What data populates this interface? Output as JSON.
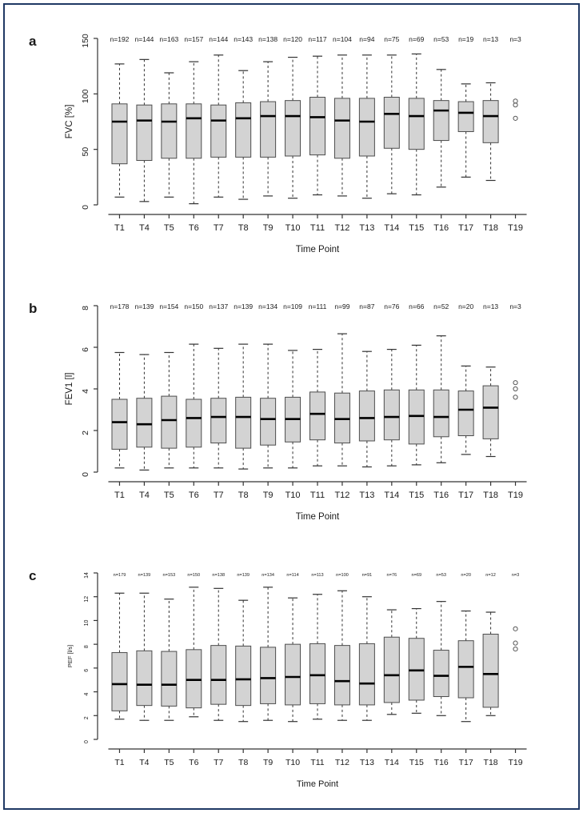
{
  "page": {
    "frame_border_color": "#1f3864",
    "background_color": "#ffffff"
  },
  "panels": [
    {
      "letter": "a"
    },
    {
      "letter": "b"
    },
    {
      "letter": "c"
    }
  ],
  "chart_data": [
    {
      "type": "boxplot",
      "panel": "a",
      "ylabel": "FVC [%]",
      "xlabel": "Time Point",
      "ylim": [
        0,
        150
      ],
      "yticks": [
        0,
        50,
        100,
        150
      ],
      "grid": false,
      "box_fill": "#d3d3d3",
      "box_stroke": "#4d4d4d",
      "median_color": "#000000",
      "whisker_color": "#333333",
      "categories": [
        "T1",
        "T4",
        "T5",
        "T6",
        "T7",
        "T8",
        "T9",
        "T10",
        "T11",
        "T12",
        "T13",
        "T14",
        "T15",
        "T16",
        "T17",
        "T18",
        "T19"
      ],
      "n_labels": [
        "n=192",
        "n=144",
        "n=163",
        "n=157",
        "n=144",
        "n=143",
        "n=138",
        "n=120",
        "n=117",
        "n=104",
        "n=94",
        "n=75",
        "n=69",
        "n=53",
        "n=19",
        "n=13",
        "n=3"
      ],
      "boxes": [
        {
          "low": 7,
          "q1": 37,
          "med": 75,
          "q3": 91,
          "high": 127
        },
        {
          "low": 3,
          "q1": 40,
          "med": 76,
          "q3": 90,
          "high": 131
        },
        {
          "low": 7,
          "q1": 42,
          "med": 75,
          "q3": 91,
          "high": 119
        },
        {
          "low": 1,
          "q1": 42,
          "med": 78,
          "q3": 91,
          "high": 129
        },
        {
          "low": 7,
          "q1": 43,
          "med": 76,
          "q3": 90,
          "high": 135
        },
        {
          "low": 5,
          "q1": 43,
          "med": 78,
          "q3": 92,
          "high": 121
        },
        {
          "low": 8,
          "q1": 43,
          "med": 80,
          "q3": 93,
          "high": 129
        },
        {
          "low": 6,
          "q1": 44,
          "med": 80,
          "q3": 94,
          "high": 133
        },
        {
          "low": 9,
          "q1": 45,
          "med": 79,
          "q3": 97,
          "high": 134
        },
        {
          "low": 8,
          "q1": 42,
          "med": 76,
          "q3": 96,
          "high": 135
        },
        {
          "low": 6,
          "q1": 44,
          "med": 75,
          "q3": 96,
          "high": 135
        },
        {
          "low": 10,
          "q1": 51,
          "med": 82,
          "q3": 97,
          "high": 135
        },
        {
          "low": 9,
          "q1": 50,
          "med": 80,
          "q3": 96,
          "high": 136
        },
        {
          "low": 16,
          "q1": 58,
          "med": 85,
          "q3": 94,
          "high": 122
        },
        {
          "low": 25,
          "q1": 66,
          "med": 83,
          "q3": 93,
          "high": 109
        },
        {
          "low": 22,
          "q1": 56,
          "med": 80,
          "q3": 94,
          "high": 110
        },
        null
      ],
      "outliers": {
        "category": "T19",
        "values": [
          93.5,
          90,
          78
        ]
      }
    },
    {
      "type": "boxplot",
      "panel": "b",
      "ylabel": "FEV1 [l]",
      "xlabel": "Time Point",
      "ylim": [
        0,
        8
      ],
      "yticks": [
        0,
        2,
        4,
        6,
        8
      ],
      "grid": false,
      "box_fill": "#d3d3d3",
      "box_stroke": "#4d4d4d",
      "median_color": "#000000",
      "whisker_color": "#333333",
      "categories": [
        "T1",
        "T4",
        "T5",
        "T6",
        "T7",
        "T8",
        "T9",
        "T10",
        "T11",
        "T12",
        "T13",
        "T14",
        "T15",
        "T16",
        "T17",
        "T18",
        "T19"
      ],
      "n_labels": [
        "n=178",
        "n=139",
        "n=154",
        "n=150",
        "n=137",
        "n=139",
        "n=134",
        "n=109",
        "n=111",
        "n=99",
        "n=87",
        "n=76",
        "n=66",
        "n=52",
        "n=20",
        "n=13",
        "n=3"
      ],
      "boxes": [
        {
          "low": 0.2,
          "q1": 1.1,
          "med": 2.4,
          "q3": 3.5,
          "high": 5.75
        },
        {
          "low": 0.1,
          "q1": 1.2,
          "med": 2.3,
          "q3": 3.55,
          "high": 5.65
        },
        {
          "low": 0.2,
          "q1": 1.15,
          "med": 2.5,
          "q3": 3.65,
          "high": 5.75
        },
        {
          "low": 0.2,
          "q1": 1.2,
          "med": 2.6,
          "q3": 3.5,
          "high": 6.15
        },
        {
          "low": 0.2,
          "q1": 1.4,
          "med": 2.65,
          "q3": 3.55,
          "high": 5.95
        },
        {
          "low": 0.15,
          "q1": 1.15,
          "med": 2.65,
          "q3": 3.6,
          "high": 6.15
        },
        {
          "low": 0.2,
          "q1": 1.3,
          "med": 2.55,
          "q3": 3.55,
          "high": 6.15
        },
        {
          "low": 0.2,
          "q1": 1.45,
          "med": 2.55,
          "q3": 3.6,
          "high": 5.85
        },
        {
          "low": 0.3,
          "q1": 1.55,
          "med": 2.8,
          "q3": 3.85,
          "high": 5.9
        },
        {
          "low": 0.3,
          "q1": 1.4,
          "med": 2.55,
          "q3": 3.8,
          "high": 6.65
        },
        {
          "low": 0.25,
          "q1": 1.5,
          "med": 2.6,
          "q3": 3.9,
          "high": 5.8
        },
        {
          "low": 0.3,
          "q1": 1.55,
          "med": 2.65,
          "q3": 3.95,
          "high": 5.9
        },
        {
          "low": 0.35,
          "q1": 1.35,
          "med": 2.7,
          "q3": 3.95,
          "high": 6.1
        },
        {
          "low": 0.45,
          "q1": 1.7,
          "med": 2.65,
          "q3": 3.95,
          "high": 6.55
        },
        {
          "low": 0.85,
          "q1": 1.75,
          "med": 3.0,
          "q3": 3.9,
          "high": 5.1
        },
        {
          "low": 0.75,
          "q1": 1.6,
          "med": 3.1,
          "q3": 4.15,
          "high": 5.05
        },
        null
      ],
      "outliers": {
        "category": "T19",
        "values": [
          4.3,
          4.0,
          3.6
        ]
      }
    },
    {
      "type": "boxplot",
      "panel": "c",
      "ylabel": "PEF [l/s]",
      "xlabel": "Time Point",
      "ylim": [
        0,
        14
      ],
      "yticks": [
        0,
        2,
        4,
        6,
        8,
        10,
        12,
        14
      ],
      "grid": false,
      "box_fill": "#d3d3d3",
      "box_stroke": "#4d4d4d",
      "median_color": "#000000",
      "whisker_color": "#333333",
      "categories": [
        "T1",
        "T4",
        "T5",
        "T6",
        "T7",
        "T8",
        "T9",
        "T10",
        "T11",
        "T12",
        "T13",
        "T14",
        "T15",
        "T16",
        "T17",
        "T18",
        "T19"
      ],
      "n_labels": [
        "n=179",
        "n=139",
        "n=153",
        "n=150",
        "n=138",
        "n=139",
        "n=134",
        "n=114",
        "n=113",
        "n=100",
        "n=91",
        "n=76",
        "n=69",
        "n=53",
        "n=20",
        "n=12",
        "n=3"
      ],
      "boxes": [
        {
          "low": 1.7,
          "q1": 2.4,
          "med": 4.65,
          "q3": 7.3,
          "high": 12.3
        },
        {
          "low": 1.6,
          "q1": 2.85,
          "med": 4.6,
          "q3": 7.45,
          "high": 12.3
        },
        {
          "low": 1.6,
          "q1": 2.8,
          "med": 4.6,
          "q3": 7.4,
          "high": 11.8
        },
        {
          "low": 1.9,
          "q1": 2.65,
          "med": 5.0,
          "q3": 7.55,
          "high": 12.8
        },
        {
          "low": 1.6,
          "q1": 2.95,
          "med": 5.0,
          "q3": 7.9,
          "high": 12.7
        },
        {
          "low": 1.5,
          "q1": 2.85,
          "med": 5.05,
          "q3": 7.85,
          "high": 11.7
        },
        {
          "low": 1.6,
          "q1": 3.0,
          "med": 5.15,
          "q3": 7.75,
          "high": 12.8
        },
        {
          "low": 1.5,
          "q1": 2.9,
          "med": 5.25,
          "q3": 8.0,
          "high": 11.9
        },
        {
          "low": 1.7,
          "q1": 3.0,
          "med": 5.4,
          "q3": 8.05,
          "high": 12.2
        },
        {
          "low": 1.6,
          "q1": 2.9,
          "med": 4.9,
          "q3": 7.9,
          "high": 12.5
        },
        {
          "low": 1.6,
          "q1": 2.9,
          "med": 4.7,
          "q3": 8.05,
          "high": 12.0
        },
        {
          "low": 2.1,
          "q1": 3.1,
          "med": 5.4,
          "q3": 8.6,
          "high": 10.9
        },
        {
          "low": 2.2,
          "q1": 3.3,
          "med": 5.8,
          "q3": 8.5,
          "high": 11.0
        },
        {
          "low": 2.0,
          "q1": 3.6,
          "med": 5.35,
          "q3": 7.5,
          "high": 11.6
        },
        {
          "low": 1.5,
          "q1": 3.5,
          "med": 6.1,
          "q3": 8.3,
          "high": 10.8
        },
        {
          "low": 2.0,
          "q1": 2.7,
          "med": 5.5,
          "q3": 8.85,
          "high": 10.7
        },
        null
      ],
      "outliers": {
        "category": "T19",
        "values": [
          9.3,
          8.1,
          7.6
        ]
      }
    }
  ]
}
